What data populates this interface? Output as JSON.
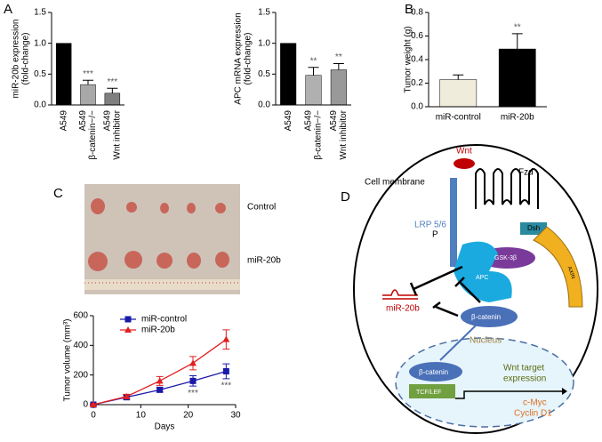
{
  "panels": [
    "A",
    "B",
    "C",
    "D"
  ],
  "chart_data": [
    {
      "type": "bar",
      "ylabel": [
        "miR-20b expression",
        "(fold-change)"
      ],
      "categories": [
        [
          "A549"
        ],
        [
          "A549",
          "β-catenin−/−"
        ],
        [
          "A549",
          "Wnt inhibitor"
        ]
      ],
      "values": [
        1.0,
        0.33,
        0.19
      ],
      "errors": [
        null,
        0.07,
        0.08
      ],
      "colors": [
        "#000000",
        "#a8a8a8",
        "#7f7f7f"
      ],
      "annotations": [
        null,
        "***",
        "***"
      ],
      "ylim": [
        0,
        1.5
      ],
      "yticks": [
        {
          "value": 0,
          "label": "0.0"
        },
        0.5,
        {
          "value": 1,
          "label": "1.0"
        },
        1.5
      ]
    },
    {
      "type": "bar",
      "ylabel": [
        "APC mRNA expression",
        "(fold-change)"
      ],
      "categories": [
        [
          "A549"
        ],
        [
          "A549",
          "β-catenin−/−"
        ],
        [
          "A549",
          "Wnt inhibitor"
        ]
      ],
      "values": [
        1.0,
        0.48,
        0.57
      ],
      "errors": [
        null,
        0.13,
        0.1
      ],
      "colors": [
        "#000000",
        "#b0b0b0",
        "#999999"
      ],
      "annotations": [
        null,
        "**",
        "**"
      ],
      "ylim": [
        0,
        1.5
      ],
      "yticks": [
        {
          "value": 0,
          "label": "0.0"
        },
        0.5,
        {
          "value": 1,
          "label": "1.0"
        },
        1.5
      ]
    },
    {
      "type": "bar",
      "ylabel": [
        "Tumor weight (g)"
      ],
      "categories": [
        [
          "miR-control"
        ],
        [
          "miR-20b"
        ]
      ],
      "values": [
        0.23,
        0.49
      ],
      "errors": [
        0.04,
        0.13
      ],
      "colors": [
        "#f0ecdc",
        "#000000"
      ],
      "annotations": [
        null,
        "**"
      ],
      "ylim": [
        0,
        0.8
      ],
      "yticks": [
        {
          "value": 0,
          "label": "0.0"
        },
        0.2,
        0.4,
        0.6,
        0.8
      ]
    },
    {
      "type": "line",
      "ylabel": [
        "Tumor volume (mm³)"
      ],
      "xlabel": "Days",
      "x": [
        0,
        7,
        14,
        21,
        28
      ],
      "series": [
        {
          "name": "miR-control",
          "color": "#1a1aa8",
          "marker": "square",
          "values": [
            0,
            50,
            100,
            160,
            225
          ],
          "errors": [
            5,
            15,
            15,
            35,
            50
          ]
        },
        {
          "name": "miR-20b",
          "color": "#e02020",
          "marker": "triangle",
          "values": [
            0,
            55,
            160,
            280,
            440
          ],
          "errors": [
            5,
            15,
            30,
            45,
            65
          ]
        }
      ],
      "annotations": [
        "***",
        "***"
      ],
      "annotation_x": [
        21,
        28
      ],
      "xlim": [
        0,
        30
      ],
      "xticks": [
        0,
        10,
        20,
        30
      ],
      "ylim": [
        0,
        600
      ],
      "yticks": [
        0,
        200,
        400,
        600
      ]
    }
  ],
  "photo": {
    "labels": [
      "Control",
      "miR-20b"
    ]
  },
  "diagram": {
    "wnt": "Wnt",
    "fzd": "Fzd",
    "membrane": "Cell membrane",
    "lrp": "LRP 5/6",
    "p": "P",
    "dsh": "Dsh",
    "gsk": "GSK-3β",
    "axin": "AXIN",
    "apc": "APC",
    "mir": "miR-20b",
    "bcat1": "β-catenin",
    "nucleus": "Nucleus",
    "bcat2": "β-catenin",
    "tcf": "TCF/LEF",
    "target": [
      "Wnt target",
      "expression"
    ],
    "genes": [
      "c-Myc",
      "Cyclin D1"
    ]
  }
}
